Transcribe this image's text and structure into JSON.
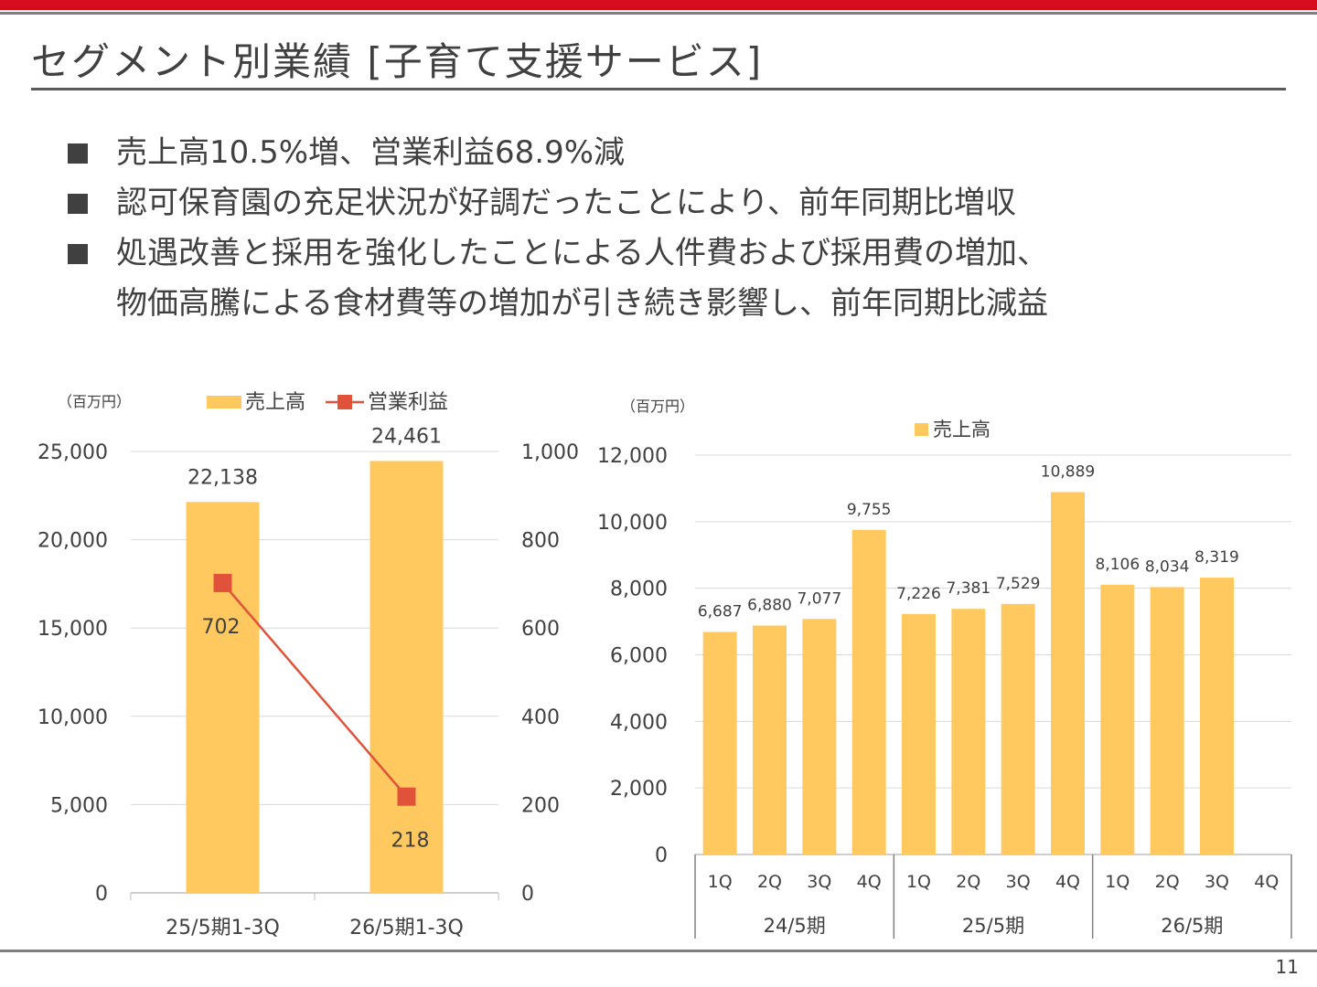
{
  "slide": {
    "title": "セグメント別業績 [子育て支援サービス]",
    "bullets": [
      "売上高10.5%増、営業利益68.9%減",
      "認可保育園の充足状況が好調だったことにより、前年同期比増収",
      "処遇改善と採用を強化したことによる人件費および採用費の増加、",
      "物価高騰による食材費等の増加が引き続き影響し、前年同期比減益"
    ],
    "page_number": "11"
  },
  "colors": {
    "accent_red": "#d70c1e",
    "bar": "#ffc960",
    "line": "#e0523a"
  },
  "chart_data": [
    {
      "type": "bar+line",
      "unit_label": "（百万円）",
      "categories": [
        "25/5期1-3Q",
        "26/5期1-3Q"
      ],
      "series": [
        {
          "name": "売上高",
          "type": "bar",
          "axis": "left",
          "values": [
            22138,
            24461
          ],
          "labels": [
            "22,138",
            "24,461"
          ]
        },
        {
          "name": "営業利益",
          "type": "line",
          "axis": "right",
          "values": [
            702,
            218
          ],
          "labels": [
            "702",
            "218"
          ]
        }
      ],
      "y_left": {
        "range": [
          0,
          25000
        ],
        "ticks": [
          "0",
          "5,000",
          "10,000",
          "15,000",
          "20,000",
          "25,000"
        ]
      },
      "y_right": {
        "range": [
          0,
          1000
        ],
        "ticks": [
          "0",
          "200",
          "400",
          "600",
          "800",
          "1,000"
        ]
      },
      "legend": "top",
      "grid": true
    },
    {
      "type": "bar",
      "unit_label": "（百万円）",
      "quarters": [
        "1Q",
        "2Q",
        "3Q",
        "4Q",
        "1Q",
        "2Q",
        "3Q",
        "4Q",
        "1Q",
        "2Q",
        "3Q",
        "4Q"
      ],
      "periods": [
        "24/5期",
        "25/5期",
        "26/5期"
      ],
      "series": [
        {
          "name": "売上高",
          "values": [
            6687,
            6880,
            7077,
            9755,
            7226,
            7381,
            7529,
            10889,
            8106,
            8034,
            8319,
            null
          ],
          "labels": [
            "6,687",
            "6,880",
            "7,077",
            "9,755",
            "7,226",
            "7,381",
            "7,529",
            "10,889",
            "8,106",
            "8,034",
            "8,319",
            ""
          ]
        }
      ],
      "y": {
        "range": [
          0,
          12000
        ],
        "ticks": [
          "0",
          "2,000",
          "4,000",
          "6,000",
          "8,000",
          "10,000",
          "12,000"
        ]
      },
      "legend": "top",
      "grid": true
    }
  ]
}
